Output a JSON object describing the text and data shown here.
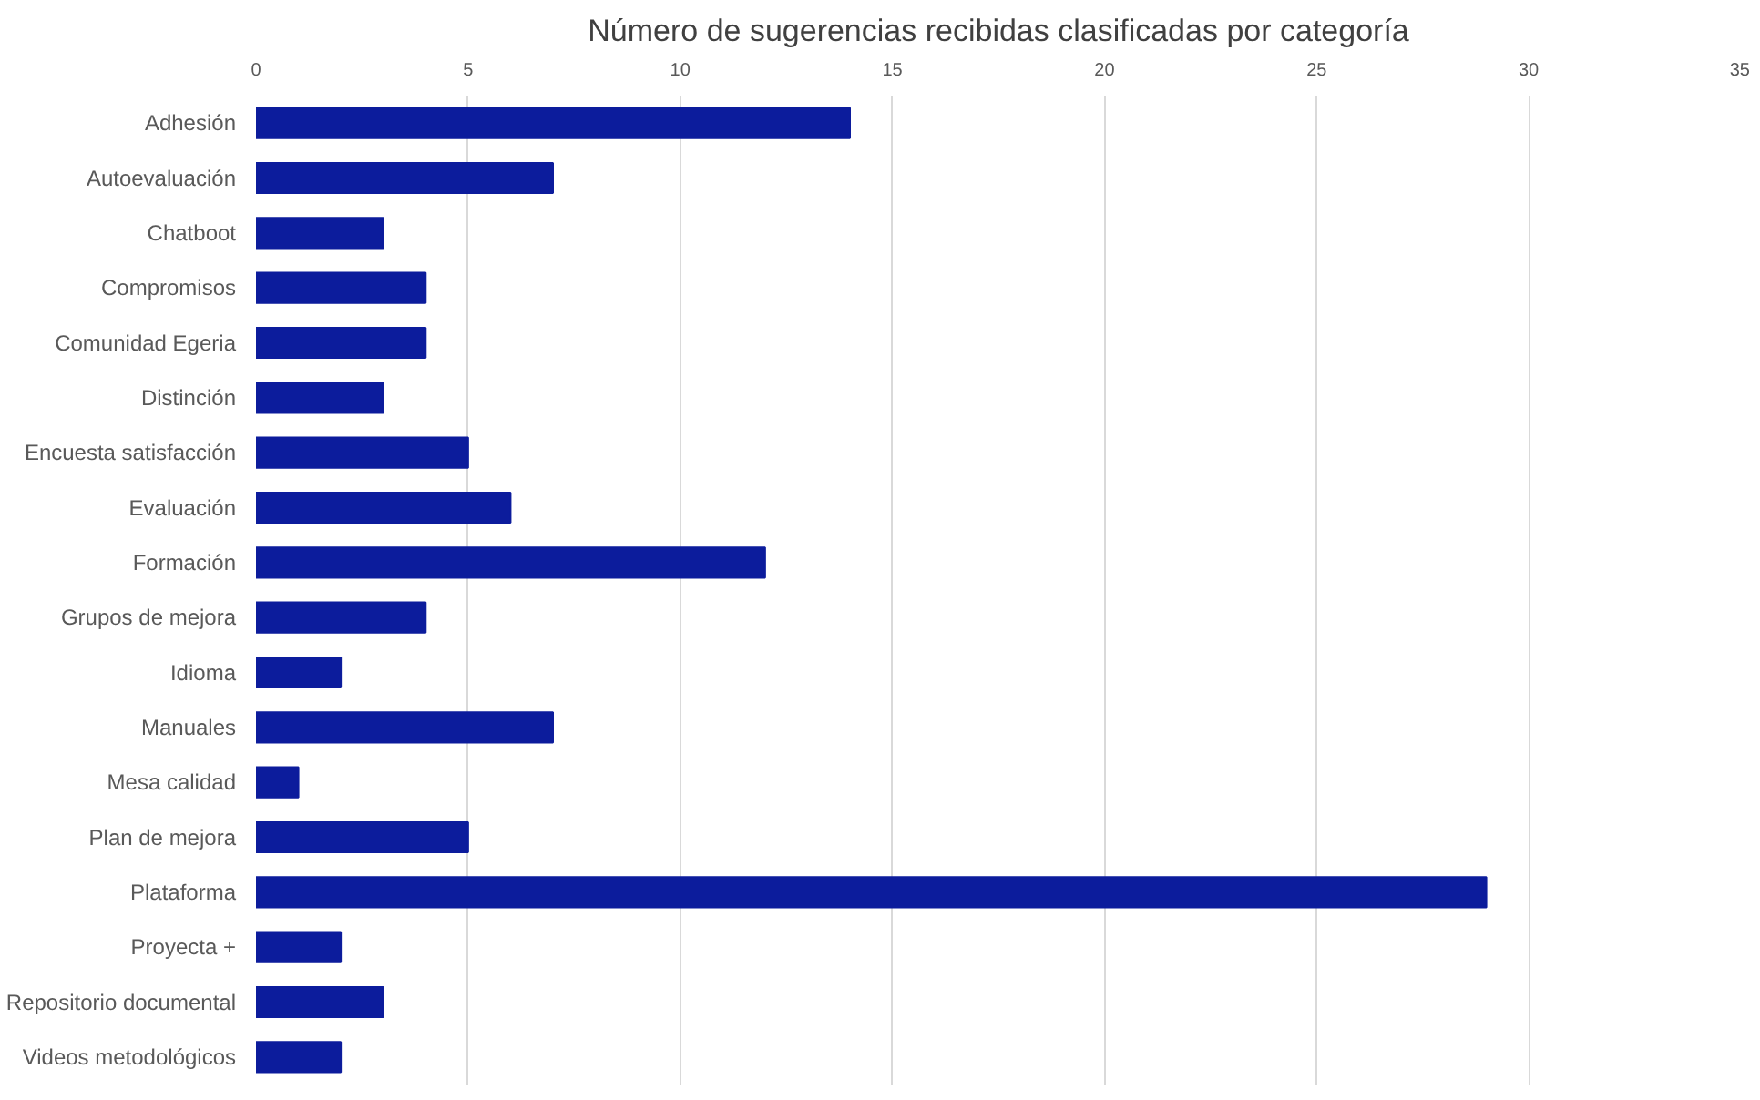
{
  "chart_data": {
    "type": "bar",
    "orientation": "horizontal",
    "title": "Número de sugerencias recibidas clasificadas por categoría",
    "categories": [
      "Adhesión",
      "Autoevaluación",
      "Chatboot",
      "Compromisos",
      "Comunidad Egeria",
      "Distinción",
      "Encuesta satisfacción",
      "Evaluación",
      "Formación",
      "Grupos de mejora",
      "Idioma",
      "Manuales",
      "Mesa calidad",
      "Plan de mejora",
      "Plataforma",
      "Proyecta +",
      "Repositorio documental",
      "Videos metodológicos"
    ],
    "values": [
      14,
      7,
      3,
      4,
      4,
      3,
      5,
      6,
      12,
      4,
      2,
      7,
      1,
      5,
      29,
      2,
      3,
      2
    ],
    "color": "#0c1c9c",
    "xlim": [
      0,
      35
    ],
    "xticks": [
      0,
      5,
      10,
      15,
      20,
      25,
      30,
      35
    ],
    "grid": "x"
  }
}
